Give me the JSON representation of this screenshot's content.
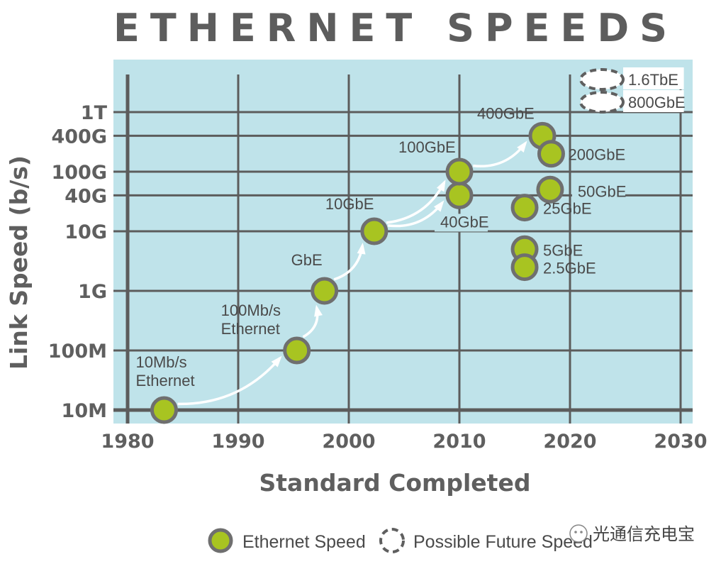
{
  "chart_data": {
    "type": "scatter",
    "title": "ETHERNET SPEEDS",
    "xlabel": "Standard Completed",
    "ylabel": "Link Speed (b/s)",
    "xlim": [
      1980,
      2030
    ],
    "x_ticks": [
      "1980",
      "1990",
      "2000",
      "2010",
      "2020",
      "2030"
    ],
    "y_ticks": [
      "10M",
      "100M",
      "1G",
      "10G",
      "40G",
      "100G",
      "400G",
      "1T"
    ],
    "y_scale": "log",
    "grid": true,
    "background_color": "#bfe3ea",
    "point_color": "#a8c421",
    "point_stroke": "#6f6f6f",
    "series": [
      {
        "name": "Ethernet Speed",
        "points": [
          {
            "label": "10Mb/s Ethernet",
            "x": 1983.3,
            "y": "10M"
          },
          {
            "label": "100Mb/s Ethernet",
            "x": 1995.3,
            "y": "100M"
          },
          {
            "label": "GbE",
            "x": 1997.8,
            "y": "1G"
          },
          {
            "label": "10GbE",
            "x": 2002.3,
            "y": "10G"
          },
          {
            "label": "40GbE",
            "x": 2010.0,
            "y": "40G"
          },
          {
            "label": "100GbE",
            "x": 2010.0,
            "y": "100G"
          },
          {
            "label": "400GbE",
            "x": 2017.5,
            "y": "400G"
          },
          {
            "label": "200GbE",
            "x": 2018.3,
            "y": "200G"
          },
          {
            "label": "50GbE",
            "x": 2018.2,
            "y": "50G"
          },
          {
            "label": "25GbE",
            "x": 2015.9,
            "y": "25G"
          },
          {
            "label": "5GbE",
            "x": 2015.9,
            "y": "5G"
          },
          {
            "label": "2.5GbE",
            "x": 2015.9,
            "y": "2.5G"
          }
        ]
      },
      {
        "name": "Possible Future Speed",
        "points": [
          {
            "label": "1.6TbE",
            "y": "1.6T"
          },
          {
            "label": "800GbE",
            "y": "800G"
          }
        ]
      }
    ],
    "arrows": [
      {
        "from": "10Mb/s Ethernet",
        "to": "100Mb/s Ethernet"
      },
      {
        "from": "100Mb/s Ethernet",
        "to": "GbE"
      },
      {
        "from": "GbE",
        "to": "10GbE"
      },
      {
        "from": "10GbE",
        "to": "100GbE"
      },
      {
        "from": "10GbE",
        "to": "40GbE"
      },
      {
        "from": "100GbE",
        "to": "400GbE"
      }
    ],
    "legend": [
      "Ethernet Speed",
      "Possible Future Speed"
    ],
    "legend_position": "bottom"
  },
  "watermark": "光通信充电宝"
}
